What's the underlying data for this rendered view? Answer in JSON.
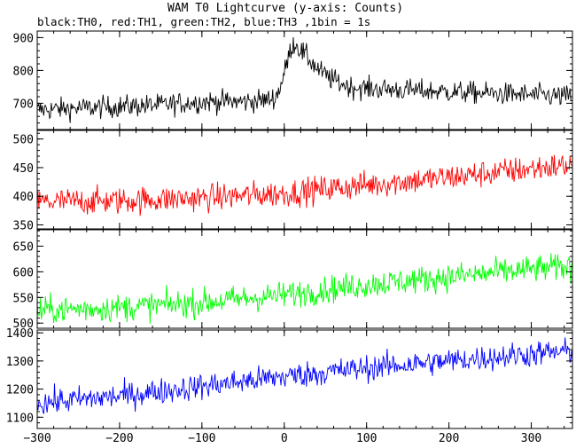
{
  "chart_data": {
    "type": "line",
    "title": "WAM T0 Lightcurve (y-axis: Counts)",
    "subtitle": "black:TH0, red:TH1, green:TH2, blue:TH3 ,1bin = 1s",
    "xlabel": "",
    "ylabel": "",
    "xlim": [
      -300,
      350
    ],
    "x_ticks": [
      -300,
      -200,
      -100,
      0,
      100,
      200,
      300
    ],
    "grid": false,
    "legend": "none",
    "panels": [
      {
        "name": "TH0",
        "color": "#000000",
        "ylim": [
          620,
          920
        ],
        "y_ticks": [
          700,
          800,
          900
        ],
        "x": [
          -300,
          -250,
          -200,
          -150,
          -100,
          -50,
          -20,
          -10,
          -5,
          0,
          5,
          10,
          15,
          20,
          30,
          40,
          50,
          60,
          70,
          80,
          100,
          150,
          200,
          250,
          300,
          350
        ],
        "values": [
          680,
          685,
          690,
          695,
          705,
          705,
          710,
          720,
          750,
          790,
          840,
          880,
          880,
          860,
          835,
          805,
          785,
          770,
          760,
          750,
          745,
          740,
          735,
          730,
          725,
          720
        ],
        "noise": 24
      },
      {
        "name": "TH1",
        "color": "#ff0000",
        "ylim": [
          343,
          515
        ],
        "y_ticks": [
          350,
          400,
          450,
          500
        ],
        "x": [
          -300,
          -200,
          -100,
          0,
          100,
          200,
          300,
          350
        ],
        "values": [
          390,
          392,
          397,
          405,
          420,
          433,
          448,
          455
        ],
        "noise": 17
      },
      {
        "name": "TH2",
        "color": "#00ff00",
        "ylim": [
          490,
          682
        ],
        "y_ticks": [
          500,
          550,
          600,
          650
        ],
        "x": [
          -300,
          -200,
          -100,
          0,
          100,
          200,
          300,
          350
        ],
        "values": [
          525,
          530,
          540,
          555,
          575,
          590,
          605,
          610
        ],
        "noise": 19
      },
      {
        "name": "TH3",
        "color": "#0000ff",
        "ylim": [
          1060,
          1410
        ],
        "y_ticks": [
          1100,
          1200,
          1300,
          1400
        ],
        "x": [
          -300,
          -200,
          -100,
          0,
          100,
          200,
          300,
          350
        ],
        "values": [
          1150,
          1175,
          1210,
          1245,
          1275,
          1300,
          1325,
          1335
        ],
        "noise": 33
      }
    ]
  }
}
